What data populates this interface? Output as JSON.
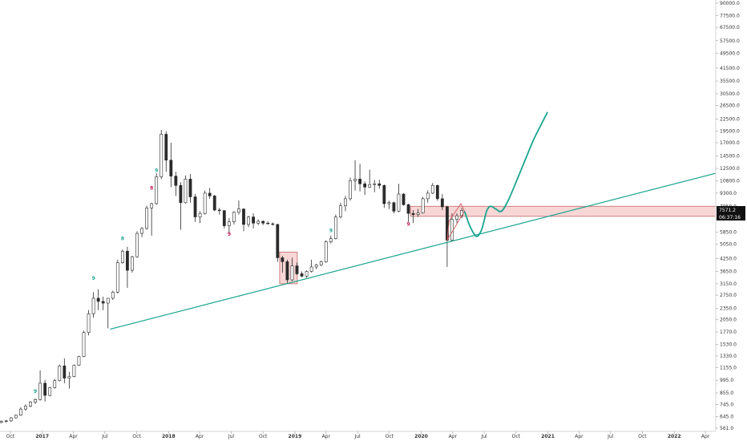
{
  "chart_data": {
    "type": "candlestick",
    "scale": "log",
    "ylim": [
      561,
      90000
    ],
    "y_ticks": [
      561,
      645,
      745,
      855,
      995,
      1155,
      1330,
      1530,
      1770,
      2050,
      2350,
      2750,
      3150,
      3650,
      4250,
      5050,
      5850,
      6850,
      7950,
      9300,
      10800,
      12500,
      14500,
      17000,
      19500,
      22500,
      26500,
      30500,
      35500,
      41500,
      49500,
      57500,
      67500,
      77500,
      90000
    ],
    "y_tick_labels": [
      "561.0",
      "645.0",
      "745.0",
      "855.0",
      "995.0",
      "1155.0",
      "1330.0",
      "1530.0",
      "1770.0",
      "2050.0",
      "2350.0",
      "2750.0",
      "3150.0",
      "3650.0",
      "4250.0",
      "5050.0",
      "5850.0",
      "6850.0",
      "7950.0",
      "9300.0",
      "10800.0",
      "12500.0",
      "14500.0",
      "17000.0",
      "19500.0",
      "22500.0",
      "26500.0",
      "30500.0",
      "35500.0",
      "41500.0",
      "49500.0",
      "57500.0",
      "67500.0",
      "77500.0",
      "90000.0"
    ],
    "x_ticks": [
      {
        "label": "Oct",
        "date": "2016-10-01",
        "year": false
      },
      {
        "label": "2017",
        "date": "2017-01-01",
        "year": true
      },
      {
        "label": "Apr",
        "date": "2017-04-01",
        "year": false
      },
      {
        "label": "Jul",
        "date": "2017-07-01",
        "year": false
      },
      {
        "label": "Oct",
        "date": "2017-10-01",
        "year": false
      },
      {
        "label": "2018",
        "date": "2018-01-01",
        "year": true
      },
      {
        "label": "Apr",
        "date": "2018-04-01",
        "year": false
      },
      {
        "label": "Jul",
        "date": "2018-07-01",
        "year": false
      },
      {
        "label": "Oct",
        "date": "2018-10-01",
        "year": false
      },
      {
        "label": "2019",
        "date": "2019-01-01",
        "year": true
      },
      {
        "label": "Apr",
        "date": "2019-04-01",
        "year": false
      },
      {
        "label": "Jul",
        "date": "2019-07-01",
        "year": false
      },
      {
        "label": "Oct",
        "date": "2019-10-01",
        "year": false
      },
      {
        "label": "2020",
        "date": "2020-01-01",
        "year": true
      },
      {
        "label": "Apr",
        "date": "2020-04-01",
        "year": false
      },
      {
        "label": "Jul",
        "date": "2020-07-01",
        "year": false
      },
      {
        "label": "Oct",
        "date": "2020-10-01",
        "year": false
      },
      {
        "label": "2021",
        "date": "2021-01-01",
        "year": true
      },
      {
        "label": "Apr",
        "date": "2021-04-01",
        "year": false
      },
      {
        "label": "Jul",
        "date": "2021-07-01",
        "year": false
      },
      {
        "label": "Oct",
        "date": "2021-10-01",
        "year": false
      },
      {
        "label": "2022",
        "date": "2022-01-01",
        "year": true
      },
      {
        "label": "Apr",
        "date": "2022-04-01",
        "year": false
      }
    ],
    "x_range": [
      "2016-09-01",
      "2022-05-01"
    ],
    "candles": [
      {
        "date": "2016-09-05",
        "o": 600,
        "h": 615,
        "l": 595,
        "c": 608
      },
      {
        "date": "2016-09-19",
        "o": 608,
        "h": 620,
        "l": 600,
        "c": 612
      },
      {
        "date": "2016-10-03",
        "o": 612,
        "h": 640,
        "l": 605,
        "c": 635
      },
      {
        "date": "2016-10-17",
        "o": 635,
        "h": 660,
        "l": 630,
        "c": 655
      },
      {
        "date": "2016-10-31",
        "o": 655,
        "h": 720,
        "l": 650,
        "c": 705
      },
      {
        "date": "2016-11-14",
        "o": 705,
        "h": 745,
        "l": 690,
        "c": 730
      },
      {
        "date": "2016-11-28",
        "o": 730,
        "h": 775,
        "l": 720,
        "c": 765
      },
      {
        "date": "2016-12-12",
        "o": 765,
        "h": 800,
        "l": 750,
        "c": 790
      },
      {
        "date": "2016-12-26",
        "o": 790,
        "h": 1120,
        "l": 780,
        "c": 960
      },
      {
        "date": "2017-01-09",
        "o": 960,
        "h": 1000,
        "l": 770,
        "c": 830
      },
      {
        "date": "2017-01-23",
        "o": 830,
        "h": 920,
        "l": 820,
        "c": 910
      },
      {
        "date": "2017-02-06",
        "o": 910,
        "h": 1010,
        "l": 900,
        "c": 990
      },
      {
        "date": "2017-02-20",
        "o": 990,
        "h": 1200,
        "l": 980,
        "c": 1180
      },
      {
        "date": "2017-03-06",
        "o": 1180,
        "h": 1290,
        "l": 960,
        "c": 1020
      },
      {
        "date": "2017-03-20",
        "o": 1020,
        "h": 1100,
        "l": 900,
        "c": 1040
      },
      {
        "date": "2017-04-03",
        "o": 1040,
        "h": 1200,
        "l": 1030,
        "c": 1190
      },
      {
        "date": "2017-04-17",
        "o": 1190,
        "h": 1330,
        "l": 1180,
        "c": 1320
      },
      {
        "date": "2017-05-01",
        "o": 1320,
        "h": 1800,
        "l": 1310,
        "c": 1760
      },
      {
        "date": "2017-05-15",
        "o": 1760,
        "h": 2300,
        "l": 1700,
        "c": 2200
      },
      {
        "date": "2017-05-29",
        "o": 2200,
        "h": 2850,
        "l": 2100,
        "c": 2650
      },
      {
        "date": "2017-06-12",
        "o": 2650,
        "h": 2950,
        "l": 2300,
        "c": 2550
      },
      {
        "date": "2017-06-26",
        "o": 2550,
        "h": 2700,
        "l": 2300,
        "c": 2500
      },
      {
        "date": "2017-07-10",
        "o": 2500,
        "h": 2550,
        "l": 1850,
        "c": 2650
      },
      {
        "date": "2017-07-24",
        "o": 2650,
        "h": 2900,
        "l": 2600,
        "c": 2850
      },
      {
        "date": "2017-08-07",
        "o": 2850,
        "h": 4200,
        "l": 2800,
        "c": 4050
      },
      {
        "date": "2017-08-21",
        "o": 4050,
        "h": 4750,
        "l": 4000,
        "c": 4650
      },
      {
        "date": "2017-09-04",
        "o": 4650,
        "h": 4900,
        "l": 3000,
        "c": 3700
      },
      {
        "date": "2017-09-18",
        "o": 3700,
        "h": 4400,
        "l": 3600,
        "c": 4350
      },
      {
        "date": "2017-10-02",
        "o": 4350,
        "h": 5900,
        "l": 4300,
        "c": 5750
      },
      {
        "date": "2017-10-16",
        "o": 5750,
        "h": 6200,
        "l": 5500,
        "c": 6100
      },
      {
        "date": "2017-10-30",
        "o": 6100,
        "h": 8000,
        "l": 6000,
        "c": 7800
      },
      {
        "date": "2017-11-13",
        "o": 7800,
        "h": 8300,
        "l": 5600,
        "c": 8200
      },
      {
        "date": "2017-11-27",
        "o": 8200,
        "h": 11800,
        "l": 8100,
        "c": 11300
      },
      {
        "date": "2017-12-11",
        "o": 11300,
        "h": 19800,
        "l": 11000,
        "c": 18800
      },
      {
        "date": "2017-12-25",
        "o": 18800,
        "h": 19500,
        "l": 12000,
        "c": 13800
      },
      {
        "date": "2018-01-08",
        "o": 13800,
        "h": 17000,
        "l": 10000,
        "c": 11400
      },
      {
        "date": "2018-01-22",
        "o": 11400,
        "h": 12000,
        "l": 9000,
        "c": 10200
      },
      {
        "date": "2018-02-05",
        "o": 10200,
        "h": 10600,
        "l": 6000,
        "c": 8300
      },
      {
        "date": "2018-02-19",
        "o": 8300,
        "h": 11500,
        "l": 8200,
        "c": 11000
      },
      {
        "date": "2018-03-05",
        "o": 11000,
        "h": 11700,
        "l": 8300,
        "c": 8900
      },
      {
        "date": "2018-03-19",
        "o": 8900,
        "h": 9200,
        "l": 6600,
        "c": 7000
      },
      {
        "date": "2018-04-02",
        "o": 7000,
        "h": 7500,
        "l": 6500,
        "c": 7300
      },
      {
        "date": "2018-04-16",
        "o": 7300,
        "h": 9600,
        "l": 7200,
        "c": 9300
      },
      {
        "date": "2018-04-30",
        "o": 9300,
        "h": 9900,
        "l": 8700,
        "c": 9000
      },
      {
        "date": "2018-05-14",
        "o": 9000,
        "h": 9100,
        "l": 7500,
        "c": 7600
      },
      {
        "date": "2018-05-28",
        "o": 7600,
        "h": 7800,
        "l": 7200,
        "c": 7550
      },
      {
        "date": "2018-06-11",
        "o": 7550,
        "h": 7600,
        "l": 6100,
        "c": 6300
      },
      {
        "date": "2018-06-25",
        "o": 6300,
        "h": 6900,
        "l": 5800,
        "c": 6600
      },
      {
        "date": "2018-07-09",
        "o": 6600,
        "h": 7500,
        "l": 6400,
        "c": 7400
      },
      {
        "date": "2018-07-23",
        "o": 7400,
        "h": 8500,
        "l": 7200,
        "c": 7700
      },
      {
        "date": "2018-08-06",
        "o": 7700,
        "h": 7750,
        "l": 5900,
        "c": 6400
      },
      {
        "date": "2018-08-20",
        "o": 6400,
        "h": 7100,
        "l": 6200,
        "c": 7000
      },
      {
        "date": "2018-09-03",
        "o": 7000,
        "h": 7300,
        "l": 6100,
        "c": 6500
      },
      {
        "date": "2018-09-17",
        "o": 6500,
        "h": 6800,
        "l": 6350,
        "c": 6650
      },
      {
        "date": "2018-10-01",
        "o": 6650,
        "h": 6700,
        "l": 6350,
        "c": 6500
      },
      {
        "date": "2018-10-15",
        "o": 6500,
        "h": 6650,
        "l": 6400,
        "c": 6450
      },
      {
        "date": "2018-10-29",
        "o": 6450,
        "h": 6550,
        "l": 6300,
        "c": 6400
      },
      {
        "date": "2018-11-12",
        "o": 6400,
        "h": 6450,
        "l": 4100,
        "c": 4300
      },
      {
        "date": "2018-11-26",
        "o": 4300,
        "h": 4400,
        "l": 3600,
        "c": 4100
      },
      {
        "date": "2018-12-10",
        "o": 4100,
        "h": 4200,
        "l": 3150,
        "c": 3300
      },
      {
        "date": "2018-12-24",
        "o": 3300,
        "h": 4300,
        "l": 3250,
        "c": 3900
      },
      {
        "date": "2019-01-07",
        "o": 3900,
        "h": 4050,
        "l": 3500,
        "c": 3550
      },
      {
        "date": "2019-01-21",
        "o": 3550,
        "h": 3650,
        "l": 3400,
        "c": 3450
      },
      {
        "date": "2019-02-04",
        "o": 3450,
        "h": 3700,
        "l": 3380,
        "c": 3650
      },
      {
        "date": "2019-02-18",
        "o": 3650,
        "h": 4200,
        "l": 3600,
        "c": 3850
      },
      {
        "date": "2019-03-04",
        "o": 3850,
        "h": 4000,
        "l": 3750,
        "c": 3950
      },
      {
        "date": "2019-03-18",
        "o": 3950,
        "h": 4150,
        "l": 3900,
        "c": 4100
      },
      {
        "date": "2019-04-01",
        "o": 4100,
        "h": 5300,
        "l": 4050,
        "c": 5200
      },
      {
        "date": "2019-04-15",
        "o": 5200,
        "h": 5600,
        "l": 5100,
        "c": 5400
      },
      {
        "date": "2019-04-29",
        "o": 5400,
        "h": 7200,
        "l": 5350,
        "c": 7000
      },
      {
        "date": "2019-05-13",
        "o": 7000,
        "h": 8300,
        "l": 6900,
        "c": 8000
      },
      {
        "date": "2019-05-27",
        "o": 8000,
        "h": 9000,
        "l": 7500,
        "c": 8700
      },
      {
        "date": "2019-06-10",
        "o": 8700,
        "h": 11200,
        "l": 8500,
        "c": 10800
      },
      {
        "date": "2019-06-24",
        "o": 10800,
        "h": 13800,
        "l": 9600,
        "c": 11000
      },
      {
        "date": "2019-07-08",
        "o": 11000,
        "h": 13200,
        "l": 9500,
        "c": 10400
      },
      {
        "date": "2019-07-22",
        "o": 10400,
        "h": 10700,
        "l": 9100,
        "c": 10000
      },
      {
        "date": "2019-08-05",
        "o": 10000,
        "h": 12300,
        "l": 9900,
        "c": 10300
      },
      {
        "date": "2019-08-19",
        "o": 10300,
        "h": 10900,
        "l": 9400,
        "c": 10400
      },
      {
        "date": "2019-09-02",
        "o": 10400,
        "h": 10900,
        "l": 9800,
        "c": 10200
      },
      {
        "date": "2019-09-16",
        "o": 10200,
        "h": 10300,
        "l": 7800,
        "c": 8200
      },
      {
        "date": "2019-09-30",
        "o": 8200,
        "h": 8500,
        "l": 7700,
        "c": 8300
      },
      {
        "date": "2019-10-14",
        "o": 8300,
        "h": 8400,
        "l": 7300,
        "c": 7500
      },
      {
        "date": "2019-10-28",
        "o": 7500,
        "h": 10400,
        "l": 7400,
        "c": 9200
      },
      {
        "date": "2019-11-11",
        "o": 9200,
        "h": 9300,
        "l": 8000,
        "c": 8100
      },
      {
        "date": "2019-11-25",
        "o": 8100,
        "h": 8200,
        "l": 6600,
        "c": 7300
      },
      {
        "date": "2019-12-09",
        "o": 7300,
        "h": 7600,
        "l": 6500,
        "c": 7200
      },
      {
        "date": "2019-12-23",
        "o": 7200,
        "h": 7700,
        "l": 7000,
        "c": 7350
      },
      {
        "date": "2020-01-06",
        "o": 7350,
        "h": 8900,
        "l": 7300,
        "c": 8700
      },
      {
        "date": "2020-01-20",
        "o": 8700,
        "h": 9600,
        "l": 8300,
        "c": 9300
      },
      {
        "date": "2020-02-03",
        "o": 9300,
        "h": 10500,
        "l": 9200,
        "c": 10200
      },
      {
        "date": "2020-02-17",
        "o": 10200,
        "h": 10300,
        "l": 8500,
        "c": 8700
      },
      {
        "date": "2020-03-02",
        "o": 8700,
        "h": 9200,
        "l": 7600,
        "c": 7900
      },
      {
        "date": "2020-03-16",
        "o": 7900,
        "h": 8000,
        "l": 3850,
        "c": 5300
      },
      {
        "date": "2020-03-30",
        "o": 5300,
        "h": 7300,
        "l": 5200,
        "c": 6800
      },
      {
        "date": "2020-04-13",
        "o": 6800,
        "h": 7300,
        "l": 6500,
        "c": 7100
      },
      {
        "date": "2020-04-27",
        "o": 7100,
        "h": 7800,
        "l": 6900,
        "c": 7571
      }
    ],
    "current_price": 7571.2,
    "current_price_label": "7571.2",
    "countdown_label": "06:37:16",
    "trendline": {
      "points": [
        {
          "date": "2017-07-16",
          "price": 1830
        },
        {
          "date": "2022-05-01",
          "price": 11800
        }
      ],
      "color": "#1aa58f"
    },
    "resistance_zone": {
      "start": "2019-12-01",
      "end": "2022-05-01",
      "top": 7950,
      "bottom": 7050,
      "fill": "#f8d6d6",
      "stroke": "#c46a6a"
    },
    "highlight_box": {
      "start": "2018-11-18",
      "end": "2019-01-08",
      "top": 4600,
      "bottom": 3150,
      "fill": "#f8d6d6",
      "stroke": "#c46a6a"
    },
    "wedge": [
      {
        "date": "2020-03-16",
        "price": 5300
      },
      {
        "date": "2020-05-05",
        "price": 7500
      },
      {
        "date": "2020-04-25",
        "price": 8200
      },
      {
        "date": "2020-03-22",
        "price": 6700
      }
    ],
    "projection": {
      "points": [
        {
          "date": "2020-05-05",
          "price": 7500
        },
        {
          "date": "2020-05-22",
          "price": 6200
        },
        {
          "date": "2020-06-09",
          "price": 5550
        },
        {
          "date": "2020-06-24",
          "price": 6050
        },
        {
          "date": "2020-07-08",
          "price": 7500
        },
        {
          "date": "2020-07-20",
          "price": 7950
        },
        {
          "date": "2020-08-03",
          "price": 7700
        },
        {
          "date": "2020-08-20",
          "price": 7500
        },
        {
          "date": "2020-09-08",
          "price": 8500
        },
        {
          "date": "2020-10-01",
          "price": 10600
        },
        {
          "date": "2020-10-25",
          "price": 13500
        },
        {
          "date": "2020-11-20",
          "price": 17500
        },
        {
          "date": "2020-12-12",
          "price": 21000
        },
        {
          "date": "2020-12-31",
          "price": 24500
        }
      ],
      "color": "#1aa58f"
    },
    "td_markers": [
      {
        "date": "2016-12-12",
        "price": 855,
        "text": "9",
        "color": "#1aa58f"
      },
      {
        "date": "2017-05-29",
        "price": 3300,
        "text": "9",
        "color": "#1aa58f"
      },
      {
        "date": "2017-08-21",
        "price": 5300,
        "text": "8",
        "color": "#1aa58f"
      },
      {
        "date": "2017-11-27",
        "price": 12000,
        "text": "9",
        "color": "#1aa58f"
      },
      {
        "date": "2017-11-13",
        "price": 9700,
        "text": "8",
        "color": "#c2185b"
      },
      {
        "date": "2018-06-25",
        "price": 5600,
        "text": "9",
        "color": "#c2185b"
      },
      {
        "date": "2019-04-15",
        "price": 5850,
        "text": "9",
        "color": "#1aa58f"
      },
      {
        "date": "2019-11-25",
        "price": 6300,
        "text": "9",
        "color": "#c2185b"
      }
    ],
    "colors": {
      "up": "#ffffff",
      "down": "#2a2a2a",
      "wick": "#2a2a2a",
      "td_up": "#1aa58f",
      "td_down": "#c2185b",
      "price_tag": "#111111"
    }
  }
}
